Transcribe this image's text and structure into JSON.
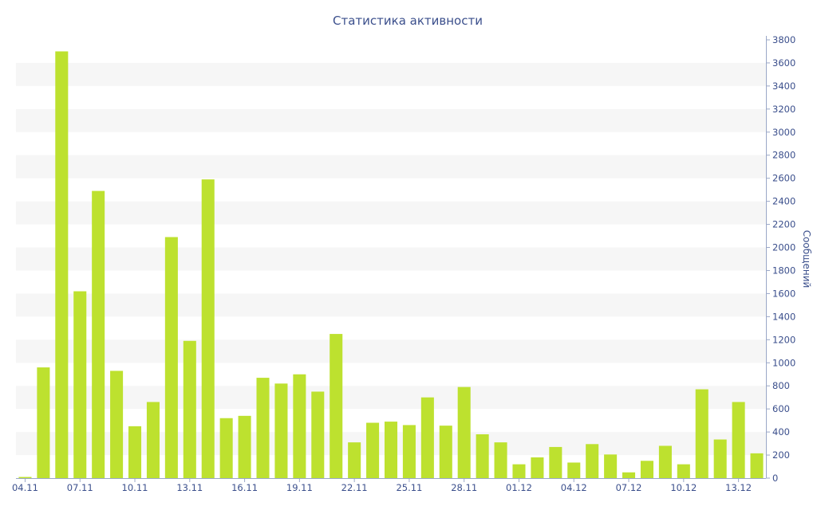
{
  "chart_data": {
    "type": "bar",
    "title": "Статистика активности",
    "xlabel": "",
    "ylabel": "Сообщений",
    "y_axis_side": "right",
    "ylim": [
      0,
      3800
    ],
    "y_ticks": [
      0,
      200,
      400,
      600,
      800,
      1000,
      1200,
      1400,
      1600,
      1800,
      2000,
      2200,
      2400,
      2600,
      2800,
      3000,
      3200,
      3400,
      3600,
      3800
    ],
    "x_tick_labels": [
      "04.11",
      "07.11",
      "10.11",
      "13.11",
      "16.11",
      "19.11",
      "22.11",
      "25.11",
      "28.11",
      "01.12",
      "04.12",
      "07.12",
      "10.12",
      "13.12"
    ],
    "categories": [
      "04.11",
      "05.11",
      "06.11",
      "07.11",
      "08.11",
      "09.11",
      "10.11",
      "11.11",
      "12.11",
      "13.11",
      "14.11",
      "15.11",
      "16.11",
      "17.11",
      "18.11",
      "19.11",
      "20.11",
      "21.11",
      "22.11",
      "23.11",
      "24.11",
      "25.11",
      "26.11",
      "27.11",
      "28.11",
      "29.11",
      "30.11",
      "01.12",
      "02.12",
      "03.12",
      "04.12",
      "05.12",
      "06.12",
      "07.12",
      "08.12",
      "09.12",
      "10.12",
      "11.12",
      "12.12",
      "13.12",
      "14.12"
    ],
    "values": [
      10,
      960,
      3700,
      1620,
      2490,
      930,
      450,
      660,
      2090,
      1190,
      2590,
      520,
      540,
      870,
      820,
      900,
      750,
      1250,
      310,
      480,
      490,
      460,
      700,
      455,
      790,
      380,
      310,
      120,
      180,
      270,
      135,
      295,
      205,
      50,
      150,
      280,
      120,
      770,
      335,
      660,
      215
    ],
    "grid": "horizontal alternating bands",
    "colors": {
      "bar": "#bde12f",
      "band": "#f6f6f6",
      "text": "#3b4f8c",
      "axis": "#9aa7c7"
    }
  }
}
